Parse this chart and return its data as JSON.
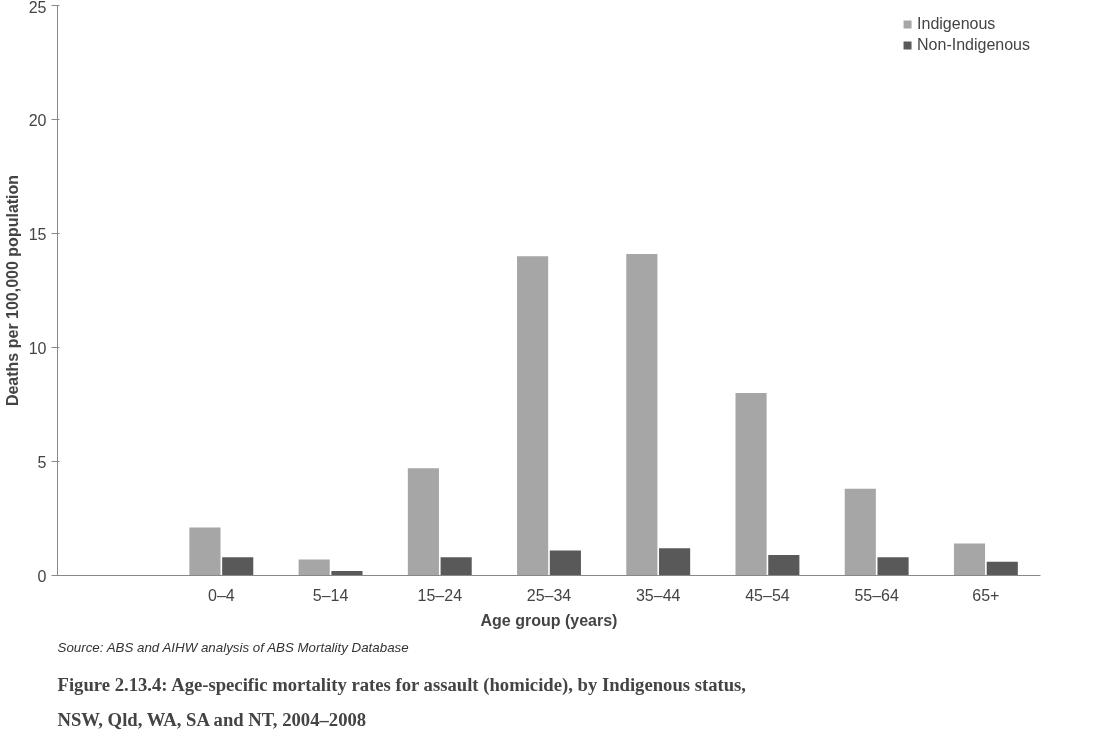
{
  "chart_data": {
    "type": "bar",
    "title": "Figure 2.13.4: Age-specific mortality rates for assault (homicide), by Indigenous status, NSW, Qld, WA, SA and NT, 2004–2008",
    "xlabel": "Age group (years)",
    "ylabel": "Deaths per 100,000 population",
    "annotations": [
      "Source: ABS and AIHW analysis of ABS Mortality Database"
    ],
    "categories": [
      null,
      "0–4",
      "5–14",
      "15–24",
      "25–34",
      "35–44",
      "45–54",
      "55–64",
      "65+"
    ],
    "series": [
      {
        "name": "Indigenous",
        "color": "#a6a6a6",
        "values": [
          null,
          2.1,
          0.7,
          4.7,
          14.0,
          14.1,
          8.0,
          3.8,
          1.4
        ]
      },
      {
        "name": "Non-Indigenous",
        "color": "#595959",
        "values": [
          null,
          0.8,
          0.2,
          0.8,
          1.1,
          1.2,
          0.9,
          0.8,
          0.6
        ]
      }
    ],
    "ylim": [
      0,
      25
    ],
    "yticks": [
      0,
      5,
      10,
      15,
      20,
      25
    ],
    "grid": false,
    "legend": "top right"
  }
}
